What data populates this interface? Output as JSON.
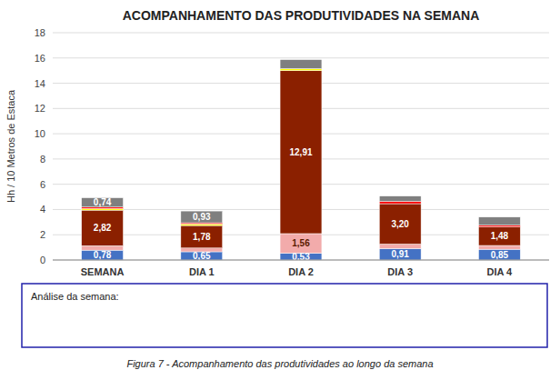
{
  "chart_data": {
    "type": "bar",
    "stacked": true,
    "title": "ACOMPANHAMENTO DAS PRODUTIVIDADES NA SEMANA",
    "ylabel": "Hh / 10 Metros de Estaca",
    "categories": [
      "SEMANA",
      "DIA 1",
      "DIA 2",
      "DIA 3",
      "DIA 4"
    ],
    "series": [
      {
        "color": "#4472C4",
        "values": [
          0.78,
          0.65,
          0.53,
          0.91,
          0.85
        ],
        "value_labels": [
          "0,78",
          "0,65",
          "0,53",
          "0,91",
          "0,85"
        ]
      },
      {
        "color": "#F2ABAB",
        "values": [
          0.35,
          0.3,
          1.56,
          0.35,
          0.3
        ],
        "value_labels": [
          null,
          null,
          "1,56",
          null,
          null
        ]
      },
      {
        "color": "#8B2000",
        "values": [
          2.82,
          1.78,
          12.91,
          3.2,
          1.48
        ],
        "value_labels": [
          "2,82",
          "1,78",
          "12,91",
          "3,20",
          "1,48"
        ]
      },
      {
        "color": "#FFFF00",
        "values": [
          0.12,
          0.12,
          0.15,
          0.0,
          0.0
        ]
      },
      {
        "color": "#FF0000",
        "values": [
          0.12,
          0.1,
          0.0,
          0.18,
          0.12
        ]
      },
      {
        "color": "#7F7F7F",
        "values": [
          0.74,
          0.93,
          0.72,
          0.42,
          0.65
        ],
        "value_labels": [
          "0,74",
          "0,93",
          null,
          null,
          null
        ]
      }
    ],
    "ylim": [
      0,
      18
    ],
    "yticks": [
      0,
      2,
      4,
      6,
      8,
      10,
      12,
      14,
      16,
      18
    ],
    "grid": true,
    "data_labels": true,
    "annotations": [
      "Análise da semana:"
    ],
    "caption": "Figura 7 - Acompanhamento das produtividades ao longo da semana"
  }
}
